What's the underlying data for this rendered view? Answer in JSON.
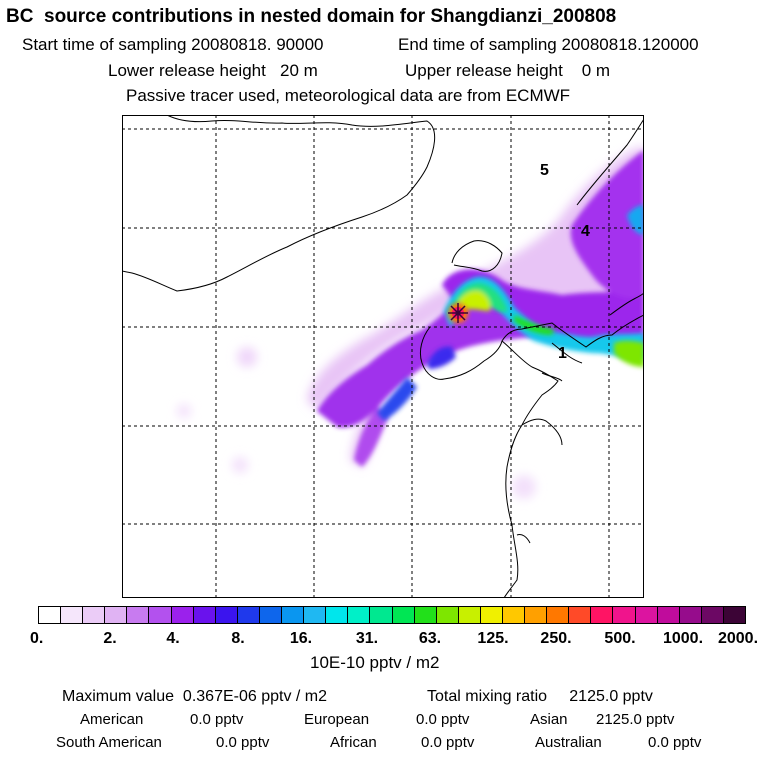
{
  "header": {
    "title": "BC  source contributions in nested domain for Shangdianzi_200808",
    "start_time": "Start time of sampling 20080818. 90000",
    "end_time": "End time of sampling 20080818.120000",
    "lower_height": "Lower release height   20 m",
    "upper_height": "Upper release height    0 m",
    "tracer_note": "Passive tracer used, meteorological data are from ECMWF"
  },
  "map": {
    "position_labels": [
      "5",
      "4",
      "1"
    ],
    "receptor_marker": "star-icon"
  },
  "legend": {
    "colors": [
      "#ffffff",
      "#f5e6fb",
      "#ebccf7",
      "#e0b3f3",
      "#c87bf0",
      "#b351ee",
      "#9b21ec",
      "#6a12ed",
      "#3b14ee",
      "#1f39ec",
      "#0e66ec",
      "#0a96f0",
      "#1fb8f2",
      "#00e6ec",
      "#00f0c8",
      "#00e890",
      "#00e654",
      "#22e01a",
      "#7ee600",
      "#c8f000",
      "#f0f000",
      "#ffc800",
      "#ffa000",
      "#ff7800",
      "#ff4a28",
      "#ff1464",
      "#f0148c",
      "#dc14a0",
      "#c00c9c",
      "#960c8c",
      "#6c0864",
      "#3c0436"
    ],
    "ticks": [
      "0.",
      "2.",
      "4.",
      "8.",
      "16.",
      "31.",
      "63.",
      "125.",
      "250.",
      "500.",
      "1000.",
      "2000."
    ],
    "units": "10E-10 pptv / m2"
  },
  "stats": {
    "max_label": "Maximum value  0.367E-06 pptv / m2",
    "total_label": "Total mixing ratio     2125.0 pptv",
    "regions": [
      {
        "name": "American",
        "value": "0.0 pptv"
      },
      {
        "name": "European",
        "value": "0.0 pptv"
      },
      {
        "name": "Asian",
        "value": "2125.0 pptv"
      },
      {
        "name": "South American",
        "value": "0.0 pptv"
      },
      {
        "name": "African",
        "value": "0.0 pptv"
      },
      {
        "name": "Australian",
        "value": "0.0 pptv"
      }
    ]
  }
}
